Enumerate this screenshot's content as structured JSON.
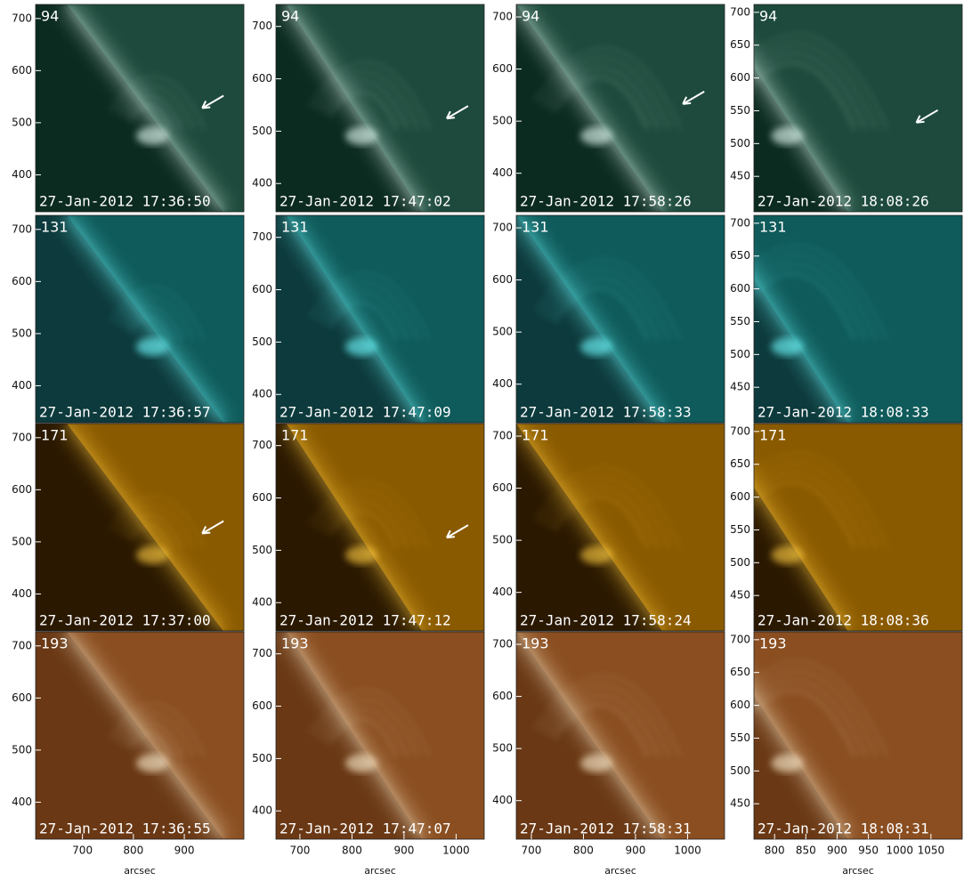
{
  "figure": {
    "columns": [
      {
        "ylim": [
          329,
          727
        ],
        "yticks": [
          400,
          500,
          600,
          700
        ],
        "xlim": [
          608,
          1017
        ],
        "xticks": [
          700,
          800,
          900
        ],
        "x_label": "arcsec"
      },
      {
        "ylim": [
          346,
          742
        ],
        "yticks": [
          400,
          500,
          600,
          700
        ],
        "xlim": [
          654,
          1054
        ],
        "xticks": [
          700,
          800,
          900,
          1000
        ],
        "x_label": "arcsec"
      },
      {
        "ylim": [
          326,
          724
        ],
        "yticks": [
          400,
          500,
          600,
          700
        ],
        "xlim": [
          671,
          1071
        ],
        "xticks": [
          700,
          800,
          900,
          1000
        ],
        "x_label": "arcsec"
      },
      {
        "ylim": [
          396,
          712
        ],
        "yticks": [
          450,
          500,
          550,
          600,
          650,
          700
        ],
        "xlim": [
          767,
          1100
        ],
        "xticks": [
          800,
          850,
          900,
          950,
          1000,
          1050
        ],
        "x_label": "arcsec"
      }
    ],
    "rows": [
      {
        "channel": "94",
        "timestamps": [
          "27-Jan-2012 17:36:50",
          "27-Jan-2012 17:47:02",
          "27-Jan-2012 17:58:26",
          "27-Jan-2012 18:08:26"
        ]
      },
      {
        "channel": "131",
        "timestamps": [
          "27-Jan-2012 17:36:57",
          "27-Jan-2012 17:47:09",
          "27-Jan-2012 17:58:33",
          "27-Jan-2012 18:08:33"
        ]
      },
      {
        "channel": "171",
        "timestamps": [
          "27-Jan-2012 17:37:00",
          "27-Jan-2012 17:47:12",
          "27-Jan-2012 17:58:24",
          "27-Jan-2012 18:08:36"
        ]
      },
      {
        "channel": "193",
        "timestamps": [
          "27-Jan-2012 17:36:55",
          "27-Jan-2012 17:47:07",
          "27-Jan-2012 17:58:31",
          "27-Jan-2012 18:08:31"
        ]
      }
    ]
  }
}
